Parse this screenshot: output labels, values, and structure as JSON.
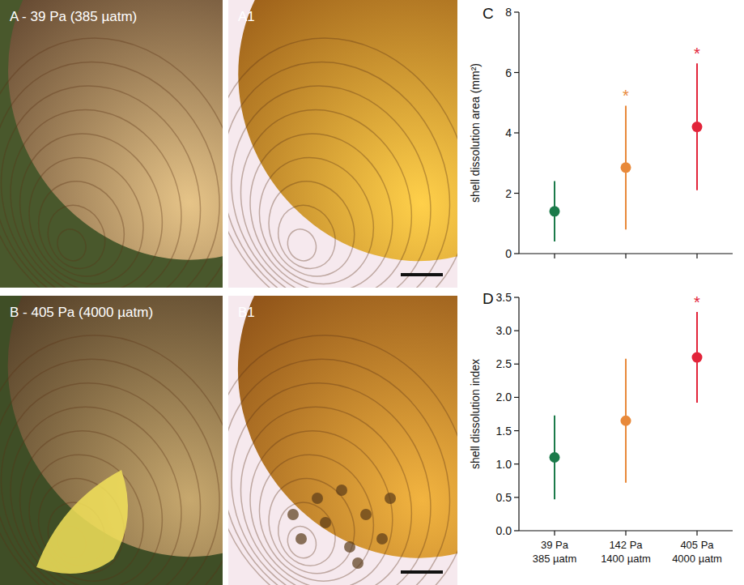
{
  "panels": [
    {
      "label": "A - 39 Pa (385 µatm)"
    },
    {
      "label": "A1"
    },
    {
      "label": "B - 405 Pa (4000 µatm)"
    },
    {
      "label": "B1"
    }
  ],
  "chart_data": [
    {
      "type": "scatter",
      "panel": "C",
      "y_label": "shell dissolution area (mm²)",
      "categories": [
        "39 Pa\n385 µatm",
        "142 Pa\n1400 µatm",
        "405 Pa\n4000 µatm"
      ],
      "values": [
        1.4,
        2.85,
        4.2
      ],
      "errors": [
        1.0,
        2.05,
        2.1
      ],
      "significance": [
        null,
        "*",
        "*"
      ],
      "colors": [
        "#1b7a4a",
        "#e8893a",
        "#e2243a"
      ],
      "ylim": [
        0,
        8
      ],
      "yticks": [
        0,
        2,
        4,
        6,
        8
      ],
      "tick_labels": "y",
      "marker": "circle"
    },
    {
      "type": "scatter",
      "panel": "D",
      "y_label": "shell dissolution index",
      "categories": [
        "39 Pa\n385 µatm",
        "142 Pa\n1400 µatm",
        "405 Pa\n4000 µatm"
      ],
      "values": [
        1.1,
        1.65,
        2.6
      ],
      "errors": [
        0.63,
        0.93,
        0.68
      ],
      "significance": [
        null,
        null,
        "*"
      ],
      "colors": [
        "#1b7a4a",
        "#e8893a",
        "#e2243a"
      ],
      "ylim": [
        0,
        3.5
      ],
      "yticks": [
        {
          "value": 0,
          "label": "0.0"
        },
        0.5,
        {
          "value": 1,
          "label": "1.0"
        },
        1.5,
        {
          "value": 2,
          "label": "2.0"
        },
        2.5,
        {
          "value": 3,
          "label": "3.0"
        },
        3.5
      ],
      "marker": "circle"
    }
  ]
}
